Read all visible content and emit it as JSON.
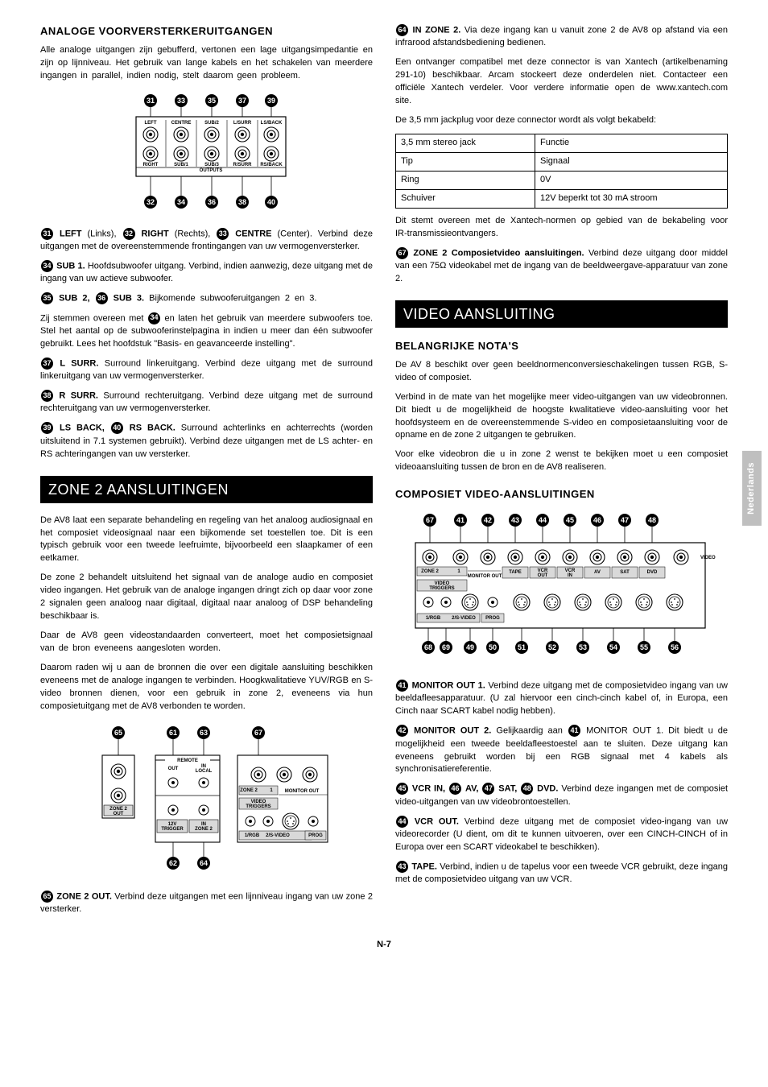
{
  "side_tab": "Nederlands",
  "page_number": "N-7",
  "left": {
    "h_analoge": "ANALOGE VOORVERSTERKERUITGANGEN",
    "p_analoge": "Alle analoge uitgangen zijn gebufferd, vertonen een lage uitgangsimpedantie en zijn op lijnniveau. Het gebruik van lange kabels en het schakelen van meerdere ingangen in parallel, indien nodig, stelt daarom geen probleem.",
    "d1_top": [
      "31",
      "33",
      "35",
      "37",
      "39"
    ],
    "d1_bot": [
      "32",
      "34",
      "36",
      "38",
      "40"
    ],
    "d1_labels_top": [
      "LEFT",
      "CENTRE",
      "SUB/2",
      "L/SURR",
      "LS/BACK"
    ],
    "d1_labels_bot": [
      "RIGHT",
      "SUB/1",
      "SUB/3",
      "R/SURR",
      "RS/BACK"
    ],
    "d1_outputs": "OUTPUTS",
    "p_left_a": "LEFT",
    "p_left_b": " (Links), ",
    "p_right_a": "RIGHT",
    "p_right_b": " (Rechts), ",
    "p_centre_a": "CENTRE",
    "p_centre_b": " (Center). Verbind deze uitgangen met de overeenstemmende frontingangen van uw vermogenversterker.",
    "p_sub1_a": "SUB 1.",
    "p_sub1_b": " Hoofdsubwoofer uitgang. Verbind, indien aanwezig, deze uitgang met de ingang van uw actieve subwoofer.",
    "p_sub23_a": "SUB 2, ",
    "p_sub23_b": "SUB 3.",
    "p_sub23_c": " Bijkomende subwooferuitgangen 2 en 3.",
    "p_sub23_d": "Zij stemmen overeen met ",
    "p_sub23_e": " en laten het gebruik van meerdere subwoofers toe. Stel het aantal op de subwooferinstelpagina in indien u meer dan één subwoofer gebruikt. Lees het hoofdstuk \"Basis- en geavanceerde instelling\".",
    "p_lsurr_a": "L SURR.",
    "p_lsurr_b": " Surround linkeruitgang. Verbind deze uitgang met de surround linkeruitgang van uw vermogenversterker.",
    "p_rsurr_a": "R SURR.",
    "p_rsurr_b": " Surround rechteruitgang. Verbind deze uitgang met de surround rechteruitgang van uw vermogenversterker.",
    "p_lsback_a": "LS BACK, ",
    "p_rsback_a": "RS BACK.",
    "p_lsback_b": " Surround achterlinks en achterrechts (worden uitsluitend in 7.1 systemen gebruikt). Verbind deze uitgangen met de LS achter- en RS achteringangen van uw versterker.",
    "h_zone2": "ZONE 2 AANSLUITINGEN",
    "p_z2_1": "De AV8 laat een separate behandeling en regeling van het analoog audiosignaal en het composiet videosignaal naar een bijkomende set toestellen toe. Dit is een typisch gebruik voor een tweede leefruimte, bijvoorbeeld een slaapkamer of een eetkamer.",
    "p_z2_2": "De zone 2 behandelt uitsluitend het signaal van de analoge audio en composiet video ingangen. Het gebruik van de analoge ingangen dringt zich op daar voor zone 2 signalen geen analoog naar digitaal, digitaal naar analoog of DSP behandeling beschikbaar is.",
    "p_z2_3": "Daar de AV8 geen videostandaarden converteert, moet het composietsignaal van de bron eveneens aangesloten worden.",
    "p_z2_4": "Daarom raden wij u aan de bronnen die over een digitale aansluiting beschikken eveneens met de analoge ingangen te verbinden. Hoogkwalitatieve YUV/RGB en S-video bronnen dienen, voor een gebruik in zone 2, eveneens via hun composietuitgang met de AV8 verbonden te worden.",
    "d2_nums": [
      "65",
      "61",
      "63",
      "67",
      "62",
      "64"
    ],
    "d2_remote": "REMOTE",
    "d2_out": "OUT",
    "d2_inlocal": "IN\nLOCAL",
    "d2_zone2": "ZONE 2",
    "d2_one": "1",
    "d2_monitor": "MONITOR OUT",
    "d2_zone2out": "ZONE 2\nOUT",
    "d2_12v": "12V\nTRIGGER",
    "d2_inzone2": "IN\nZONE 2",
    "d2_vt": "VIDEO\nTRIGGERS",
    "d2_1rgb": "1/RGB",
    "d2_2sv": "2/S-VIDEO",
    "d2_prog": "PROG",
    "p_z2out_a": "ZONE 2 OUT.",
    "p_z2out_b": " Verbind deze uitgangen met een lijnniveau ingang van uw zone 2 versterker."
  },
  "right": {
    "p_inz2_a": "IN ZONE 2.",
    "p_inz2_b": " Via deze ingang kan u vanuit zone 2 de AV8 op afstand via een infrarood afstandsbediening bedienen.",
    "p_inz2_c": "Een ontvanger compatibel met deze connector is van Xantech (artikelbenaming 291-10) beschikbaar. Arcam stockeert deze onderdelen niet. Contacteer een officiële Xantech verdeler. Voor verdere informatie open de www.xantech.com site.",
    "p_jack_intro": "De 3,5 mm jackplug voor deze connector wordt als volgt bekabeld:",
    "table_head_a": "3,5 mm stereo jack",
    "table_head_b": "Functie",
    "table_rows": [
      [
        "Tip",
        "Signaal"
      ],
      [
        "Ring",
        "0V"
      ],
      [
        "Schuiver",
        "12V beperkt tot 30 mA stroom"
      ]
    ],
    "p_jack_foot": "Dit stemt overeen met de Xantech-normen op gebied van de bekabeling voor IR-transmissieontvangers.",
    "p_z2comp_a": "ZONE 2 Composietvideo aansluitingen.",
    "p_z2comp_b": " Verbind deze uitgang door middel van een 75Ω videokabel met de ingang van de beeldweergave-apparatuur van zone 2.",
    "h_video": "VIDEO AANSLUITING",
    "h_notas": "BELANGRIJKE NOTA'S",
    "p_notas_1": "De AV 8 beschikt over geen beeldnormenconversieschakelingen tussen RGB, S-video of composiet.",
    "p_notas_2": "Verbind in de mate van het mogelijke meer video-uitgangen van uw videobronnen. Dit biedt u de mogelijkheid de hoogste kwalitatieve video-aansluiting voor het hoofdsysteem en de overeenstemmende S-video en composietaansluiting voor de opname en de zone 2 uitgangen te gebruiken.",
    "p_notas_3": "Voor elke videobron die u in zone 2 wenst te bekijken moet u een composiet videoaansluiting tussen de bron en de AV8 realiseren.",
    "h_comp": "COMPOSIET VIDEO-AANSLUITINGEN",
    "d3_top": [
      "67",
      "41",
      "42",
      "43",
      "44",
      "45",
      "46",
      "47",
      "48"
    ],
    "d3_bot": [
      "68",
      "69",
      "49",
      "50",
      "51",
      "52",
      "53",
      "54",
      "55",
      "56"
    ],
    "d3_row1": [
      "ZONE 2",
      "1",
      "",
      "TAPE",
      "VCR\nOUT",
      "VCR\nIN",
      "AV",
      "SAT",
      "DVD"
    ],
    "d3_monitor": "MONITOR OUT",
    "d3_video": "VIDEO",
    "d3_vt": "VIDEO\nTRIGGERS",
    "d3_btm_labels": [
      "1/RGB",
      "2/S-VIDEO",
      "",
      "PROG"
    ],
    "p_mon1_a": "MONITOR OUT 1.",
    "p_mon1_b": " Verbind deze uitgang met de composietvideo ingang van uw beeldafleesapparatuur. (U zal hiervoor een cinch-cinch kabel of, in Europa, een Cinch naar SCART kabel nodig hebben).",
    "p_mon2_a": "MONITOR OUT 2.",
    "p_mon2_b": " Gelijkaardig aan ",
    "p_mon2_c": " MONITOR OUT 1. Dit biedt u de mogelijkheid een tweede beeldafleestoestel aan te sluiten. Deze uitgang kan eveneens gebruikt worden bij een RGB signaal met 4 kabels als synchronisatiereferentie.",
    "p_vcrin_a": "VCR IN, ",
    "p_vcrin_b": "AV, ",
    "p_vcrin_c": "SAT, ",
    "p_vcrin_d": "DVD.",
    "p_vcrin_e": " Verbind deze ingangen met de composiet video-uitgangen van uw videobrontoestellen.",
    "p_vcrout_a": "VCR OUT.",
    "p_vcrout_b": " Verbind deze uitgang met de composiet video-ingang van uw videorecorder (U dient, om dit te kunnen uitvoeren, over een CINCH-CINCH of in Europa over een SCART videokabel te beschikken).",
    "p_tape_a": "TAPE.",
    "p_tape_b": " Verbind, indien u de tapelus voor een tweede VCR gebruikt, deze ingang met de composietvideo uitgang van uw VCR."
  }
}
